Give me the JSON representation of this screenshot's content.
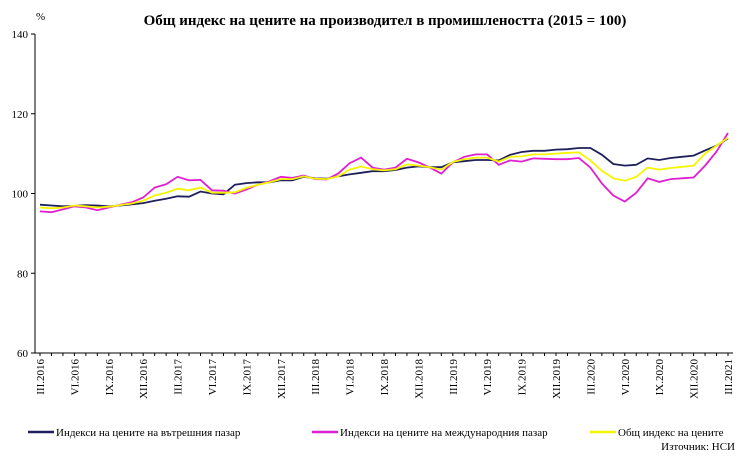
{
  "chart_data": {
    "type": "line",
    "title": "Общ индекс на цените на производител в промишлеността  (2015 = 100)",
    "y_label": "%",
    "source": "Източник: НСИ",
    "categories": [
      "III.2016",
      null,
      null,
      "VI.2016",
      null,
      null,
      "IX.2016",
      null,
      null,
      "XII.2016",
      null,
      null,
      "III.2017",
      null,
      null,
      "VI.2017",
      null,
      null,
      "IX.2017",
      null,
      null,
      "XII.2017",
      null,
      null,
      "III.2018",
      null,
      null,
      "VI.2018",
      null,
      null,
      "IX.2018",
      null,
      null,
      "XII.2018",
      null,
      null,
      "III.2019",
      null,
      null,
      "VI.2019",
      null,
      null,
      "IX.2019",
      null,
      null,
      "XII.2019",
      null,
      null,
      "III.2020",
      null,
      null,
      "VI.2020",
      null,
      null,
      "IX.2020",
      null,
      null,
      "XII.2020",
      null,
      null,
      "III.2021"
    ],
    "series": [
      {
        "name": "Индекси на цените на вътрешния пазар",
        "color": "#1f1f5c",
        "values": [
          97.2,
          97.0,
          96.8,
          96.9,
          97.1,
          97.0,
          96.8,
          97.0,
          97.3,
          97.6,
          98.2,
          98.7,
          99.3,
          99.2,
          100.5,
          100.0,
          99.8,
          102.2,
          102.6,
          102.8,
          102.8,
          103.3,
          103.3,
          104.2,
          103.8,
          103.7,
          104.3,
          104.8,
          105.2,
          105.6,
          105.6,
          105.9,
          106.5,
          106.8,
          106.6,
          106.6,
          107.8,
          108.1,
          108.4,
          108.4,
          108.3,
          109.7,
          110.4,
          110.7,
          110.7,
          111.0,
          111.1,
          111.4,
          111.4,
          109.7,
          107.4,
          107.0,
          107.2,
          108.8,
          108.4,
          108.9,
          109.2,
          109.5,
          110.8,
          112.0,
          113.8
        ]
      },
      {
        "name": "Индекси на цените на международния пазар",
        "color": "#e020d0",
        "values": [
          95.5,
          95.3,
          96.0,
          96.8,
          96.5,
          95.8,
          96.5,
          97.2,
          97.8,
          99.0,
          101.5,
          102.3,
          104.2,
          103.3,
          103.4,
          100.8,
          100.7,
          100.0,
          101.0,
          102.2,
          103.0,
          104.2,
          103.9,
          104.5,
          103.6,
          103.5,
          105.0,
          107.6,
          109.0,
          106.5,
          106.0,
          106.5,
          108.7,
          107.8,
          106.5,
          105.0,
          107.8,
          109.2,
          109.8,
          109.8,
          107.2,
          108.3,
          108.0,
          108.8,
          108.7,
          108.6,
          108.6,
          108.9,
          106.5,
          102.5,
          99.5,
          98.0,
          100.2,
          103.8,
          102.9,
          103.6,
          103.8,
          104.0,
          107.0,
          110.5,
          115.2
        ]
      },
      {
        "name": "Общ индекс на цените",
        "color": "#f5f500",
        "values": [
          96.5,
          96.3,
          96.5,
          97.0,
          96.8,
          96.5,
          96.7,
          97.1,
          97.5,
          98.2,
          99.5,
          100.2,
          101.2,
          100.8,
          101.5,
          100.2,
          100.2,
          100.3,
          101.4,
          102.2,
          102.8,
          103.6,
          103.6,
          104.3,
          103.7,
          103.6,
          104.3,
          106.0,
          106.8,
          106.1,
          105.8,
          106.1,
          107.3,
          107.0,
          106.6,
          106.0,
          107.9,
          108.6,
          109.0,
          109.0,
          108.0,
          109.2,
          109.3,
          109.8,
          109.8,
          110.0,
          110.2,
          110.3,
          108.3,
          105.7,
          103.8,
          103.2,
          104.2,
          106.5,
          106.0,
          106.4,
          106.7,
          107.0,
          110.0,
          112.0,
          114.0
        ]
      }
    ],
    "ylim": [
      60,
      140
    ],
    "yticks": [
      60,
      80,
      100,
      120,
      140
    ],
    "grid": false
  }
}
